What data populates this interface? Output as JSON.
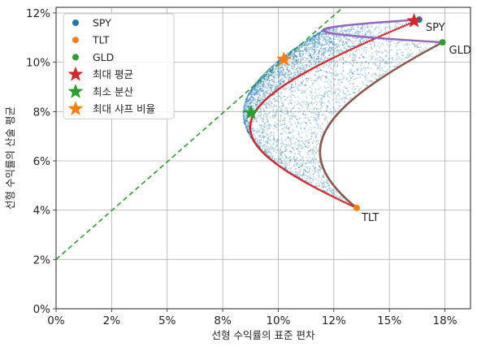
{
  "chart_data": {
    "type": "scatter",
    "xlabel": "선형 수익률의 표준 편차",
    "ylabel": "선형 수익률의 산술 평균",
    "xlim": [
      0,
      0.1865
    ],
    "ylim": [
      0,
      0.1223
    ],
    "xticks": [
      {
        "value": 0.0,
        "label": "0%"
      },
      {
        "value": 0.025,
        "label": "2%"
      },
      {
        "value": 0.05,
        "label": "5%"
      },
      {
        "value": 0.075,
        "label": "8%"
      },
      {
        "value": 0.1,
        "label": "10%"
      },
      {
        "value": 0.125,
        "label": "12%"
      },
      {
        "value": 0.15,
        "label": "15%"
      },
      {
        "value": 0.175,
        "label": "18%"
      }
    ],
    "yticks": [
      {
        "value": 0.0,
        "label": "0%"
      },
      {
        "value": 0.02,
        "label": "2%"
      },
      {
        "value": 0.04,
        "label": "4%"
      },
      {
        "value": 0.06,
        "label": "6%"
      },
      {
        "value": 0.08,
        "label": "8%"
      },
      {
        "value": 0.1,
        "label": "10%"
      },
      {
        "value": 0.12,
        "label": "12%"
      }
    ],
    "grid": true,
    "legend_position": "top-left",
    "assets": [
      {
        "name": "SPY",
        "x": 0.1634,
        "y": 0.1173,
        "color": "#1f77b4",
        "label_dx": 8,
        "label_dy": 14
      },
      {
        "name": "TLT",
        "x": 0.1353,
        "y": 0.0409,
        "color": "#ff7f0e",
        "label_dx": 6,
        "label_dy": 16
      },
      {
        "name": "GLD",
        "x": 0.1739,
        "y": 0.1081,
        "color": "#2ca02c",
        "label_dx": 8,
        "label_dy": 14
      }
    ],
    "special_points": [
      {
        "name": "최대 평균",
        "x": 0.1611,
        "y": 0.1168,
        "color": "#d62728"
      },
      {
        "name": "최소 분산",
        "x": 0.0877,
        "y": 0.0795,
        "color": "#2ca02c"
      },
      {
        "name": "최대 샤프 비율",
        "x": 0.1025,
        "y": 0.1012,
        "color": "#ff7f0e"
      }
    ],
    "capital_market_line": {
      "intercept": 0.02,
      "slope": 0.792,
      "color": "#2ca02c",
      "style": "dashed"
    },
    "frontier_curves": [
      {
        "from": "SPY",
        "to": "TLT",
        "color": "#d62728"
      },
      {
        "from": "TLT",
        "to": "GLD",
        "color": "#8c564b"
      },
      {
        "from": "SPY",
        "to": "GLD",
        "color": "#9467bd"
      }
    ],
    "random_portfolios": {
      "color": "#1f77b4"
    },
    "legend": [
      {
        "label": "SPY",
        "marker": "circle",
        "color": "#1f77b4"
      },
      {
        "label": "TLT",
        "marker": "circle",
        "color": "#ff7f0e"
      },
      {
        "label": "GLD",
        "marker": "circle",
        "color": "#2ca02c"
      },
      {
        "label": "최대 평균",
        "marker": "star",
        "color": "#d62728"
      },
      {
        "label": "최소 분산",
        "marker": "star",
        "color": "#2ca02c"
      },
      {
        "label": "최대 샤프 비율",
        "marker": "star",
        "color": "#ff7f0e"
      }
    ]
  }
}
